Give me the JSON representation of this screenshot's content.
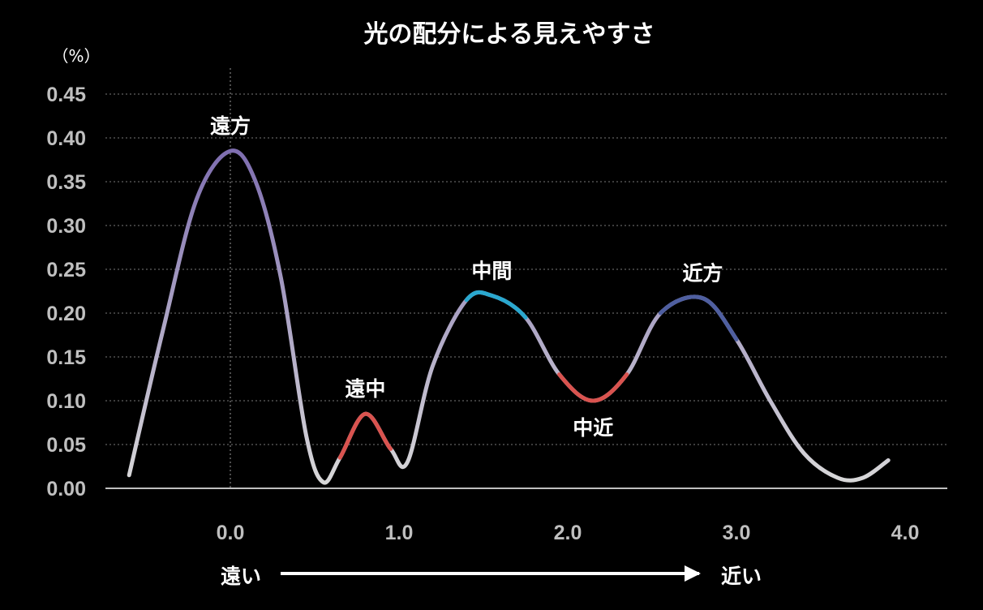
{
  "chart_data": {
    "type": "line",
    "title": "光の配分による見えやすさ",
    "ylabel": "（%）",
    "ylim": [
      0,
      0.45
    ],
    "xlim": [
      -0.6,
      4.0
    ],
    "y_ticks": [
      "0.00",
      "0.05",
      "0.10",
      "0.15",
      "0.20",
      "0.25",
      "0.30",
      "0.35",
      "0.40",
      "0.45"
    ],
    "x_ticks": [
      "0.0",
      "1.0",
      "2.0",
      "3.0",
      "4.0"
    ],
    "grid": true,
    "series": [
      {
        "x": [
          -0.6,
          -0.4,
          -0.2,
          0.0,
          0.15,
          0.3,
          0.45,
          0.55,
          0.65,
          0.8,
          0.95,
          1.05,
          1.2,
          1.4,
          1.55,
          1.75,
          1.95,
          2.15,
          2.35,
          2.55,
          2.8,
          3.0,
          3.2,
          3.4,
          3.6,
          3.75,
          3.9
        ],
        "y": [
          0.015,
          0.18,
          0.33,
          0.385,
          0.35,
          0.24,
          0.06,
          0.007,
          0.035,
          0.085,
          0.045,
          0.03,
          0.14,
          0.215,
          0.22,
          0.195,
          0.13,
          0.1,
          0.13,
          0.2,
          0.217,
          0.17,
          0.1,
          0.04,
          0.012,
          0.012,
          0.032
        ]
      }
    ],
    "annotations": [
      {
        "text": "遠方",
        "x": 0.0,
        "y": 0.385,
        "position": "above"
      },
      {
        "text": "遠中",
        "x": 0.8,
        "y": 0.085,
        "position": "above"
      },
      {
        "text": "中間",
        "x": 1.55,
        "y": 0.22,
        "position": "above"
      },
      {
        "text": "中近",
        "x": 2.15,
        "y": 0.1,
        "position": "below"
      },
      {
        "text": "近方",
        "x": 2.8,
        "y": 0.217,
        "position": "above"
      }
    ],
    "direction": {
      "from": "遠い",
      "to": "近い"
    },
    "colors": {
      "background": "#000000",
      "base_line": "#d9d9d9",
      "far": "#7f6fb0",
      "far_mid": "#d9534f",
      "mid": "#2aa8cf",
      "mid_near": "#d9534f",
      "near": "#4f5fa0"
    }
  }
}
